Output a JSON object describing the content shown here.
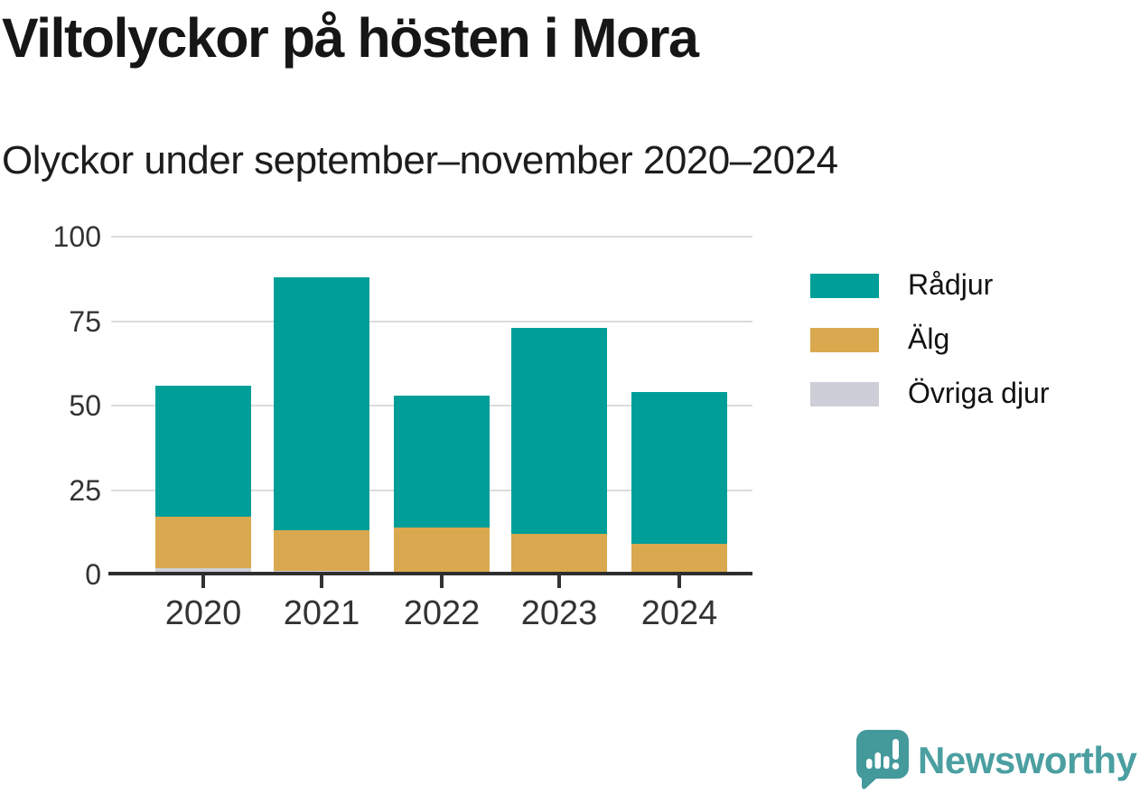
{
  "header": {
    "title": "Viltolyckor på hösten i Mora",
    "subtitle": "Olyckor under september–november 2020–2024"
  },
  "chart_data": {
    "type": "bar",
    "stacked": true,
    "title": "Viltolyckor på hösten i Mora",
    "subtitle": "Olyckor under september–november 2020–2024",
    "categories": [
      "2020",
      "2021",
      "2022",
      "2023",
      "2024"
    ],
    "series": [
      {
        "name": "Rådjur",
        "color": "#009e98",
        "values": [
          39,
          75,
          39,
          61,
          45
        ]
      },
      {
        "name": "Älg",
        "color": "#d9a84f",
        "values": [
          15,
          12,
          14,
          12,
          9
        ]
      },
      {
        "name": "Övriga djur",
        "color": "#cdced7",
        "values": [
          2,
          1,
          0,
          0,
          0
        ]
      }
    ],
    "stack_totals": [
      56,
      88,
      53,
      73,
      54
    ],
    "xlabel": "",
    "ylabel": "",
    "y_ticks": [
      0,
      25,
      50,
      75,
      100
    ],
    "ylim": [
      0,
      100
    ],
    "grid": true,
    "legend_position": "right",
    "axis_color": "#2e2e2e",
    "gridline_color": "#dcdcdc"
  },
  "footer": {
    "brand": "Newsworthy",
    "brand_color": "#4b9fa1"
  }
}
